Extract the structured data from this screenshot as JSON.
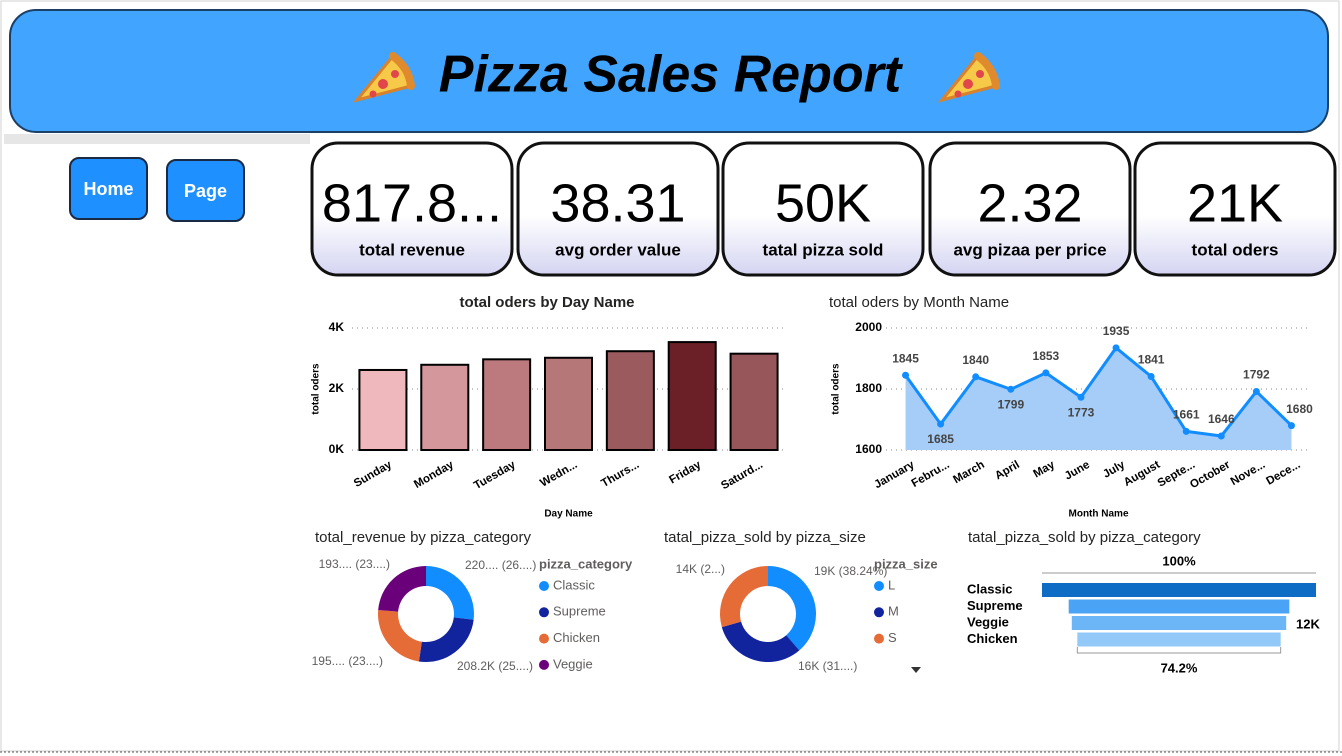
{
  "header": {
    "title": "Pizza Sales Report"
  },
  "nav": [
    "Home",
    "Page"
  ],
  "kpis": [
    {
      "value": "817.8...",
      "label": "total revenue"
    },
    {
      "value": "38.31",
      "label": "avg order value"
    },
    {
      "value": "50K",
      "label": "tatal pizza sold"
    },
    {
      "value": "2.32",
      "label": "avg pizaa per price"
    },
    {
      "value": "21K",
      "label": "total oders"
    }
  ],
  "chart_data": [
    {
      "type": "bar",
      "title": "total oders by Day Name",
      "x_label": "Day Name",
      "y_label": "total oders",
      "categories": [
        "Sunday",
        "Monday",
        "Tuesday",
        "Wedn...",
        "Thurs...",
        "Friday",
        "Saturd..."
      ],
      "values": [
        2624,
        2794,
        2973,
        3024,
        3239,
        3538,
        3158
      ],
      "colors": [
        "#efb8bc",
        "#d4979b",
        "#bc7a7e",
        "#b67779",
        "#9b5a5d",
        "#6a2026",
        "#975659"
      ],
      "ylim": [
        0,
        4000
      ],
      "yticks": [
        {
          "value": 0,
          "label": "0K"
        },
        {
          "value": 2000,
          "label": "2K"
        },
        {
          "value": 4000,
          "label": "4K"
        }
      ],
      "grid": true
    },
    {
      "type": "line",
      "title": "total oders by Month Name",
      "x_label": "Month Name",
      "y_label": "total oders",
      "categories": [
        "January",
        "Febru...",
        "March",
        "April",
        "May",
        "June",
        "July",
        "August",
        "Septe...",
        "October",
        "Nove...",
        "Dece..."
      ],
      "values": [
        1845,
        1685,
        1840,
        1799,
        1853,
        1773,
        1935,
        1841,
        1661,
        1646,
        1792,
        1680
      ],
      "color": "#118dff",
      "area_color": "#a6cdf7",
      "ylim": [
        1600,
        2000
      ],
      "yticks": [
        1600,
        1800,
        2000
      ],
      "grid": true
    },
    {
      "type": "pie",
      "title": "total_revenue by pizza_category",
      "legend_title": "pizza_category",
      "categories": [
        "Classic",
        "Supreme",
        "Chicken",
        "Veggie"
      ],
      "values": [
        220053,
        208197,
        195920,
        193690
      ],
      "value_labels": [
        "220.... (26....)",
        "208.2K (25....)",
        "195.... (23....)",
        "193.... (23....)"
      ],
      "colors": [
        "#118dff",
        "#12239e",
        "#e66c37",
        "#6b007b"
      ]
    },
    {
      "type": "pie",
      "title": "tatal_pizza_sold by pizza_size",
      "legend_title": "pizza_size",
      "categories": [
        "L",
        "M",
        "S"
      ],
      "values": [
        18956,
        15635,
        14403
      ],
      "value_labels": [
        "19K (38.24%)",
        "16K (31....)",
        "14K (2...)"
      ],
      "colors": [
        "#118dff",
        "#12239e",
        "#e66c37"
      ]
    },
    {
      "type": "funnel",
      "title": "tatal_pizza_sold by pizza_category",
      "categories": [
        "Classic",
        "Supreme",
        "Veggie",
        "Chicken"
      ],
      "values": [
        14888,
        11987,
        11649,
        11050
      ],
      "value_labels": [
        null,
        null,
        "12K",
        null
      ],
      "top_label": "100%",
      "bottom_label": "74.2%",
      "colors": [
        "#0f6cc4",
        "#4aa3f5",
        "#6cb6f7",
        "#93c9f8"
      ]
    }
  ]
}
